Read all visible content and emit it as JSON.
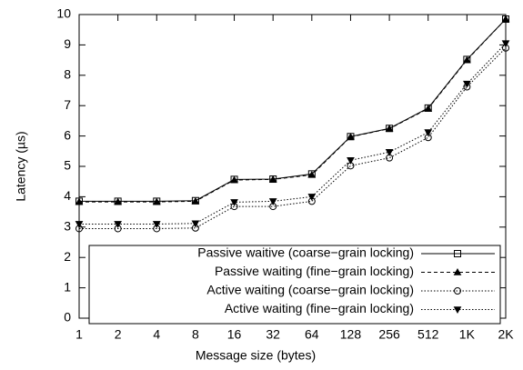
{
  "chart_data": {
    "type": "line",
    "xlabel": "Message size (bytes)",
    "ylabel": "Latency (µs)",
    "categories": [
      "1",
      "2",
      "4",
      "8",
      "16",
      "32",
      "64",
      "128",
      "256",
      "512",
      "1K",
      "2K"
    ],
    "series": [
      {
        "name": "Passive waitive (coarse−grain locking)",
        "color": "#000000",
        "marker": "square",
        "line_style": "solid",
        "values": [
          3.85,
          3.85,
          3.85,
          3.87,
          4.57,
          4.58,
          4.75,
          5.98,
          6.25,
          6.92,
          8.52,
          9.85
        ]
      },
      {
        "name": "Passive waiting (fine−grain locking)",
        "color": "#000000",
        "marker": "triangle-up",
        "line_style": "dashed",
        "values": [
          3.83,
          3.83,
          3.83,
          3.85,
          4.55,
          4.57,
          4.72,
          5.97,
          6.24,
          6.9,
          8.5,
          9.85
        ]
      },
      {
        "name": "Active waiting (coarse−grain locking)",
        "color": "#000000",
        "marker": "circle",
        "line_style": "dotted",
        "values": [
          2.95,
          2.95,
          2.95,
          2.97,
          3.68,
          3.68,
          3.85,
          5.02,
          5.28,
          5.95,
          7.62,
          8.9
        ]
      },
      {
        "name": "Active waiting (fine−grain locking)",
        "color": "#000000",
        "marker": "triangle-down",
        "line_style": "dotted",
        "values": [
          3.1,
          3.1,
          3.1,
          3.12,
          3.82,
          3.85,
          4.0,
          5.2,
          5.47,
          6.12,
          7.72,
          9.05
        ]
      }
    ],
    "ylim": [
      0,
      10
    ],
    "yticks": [
      0,
      1,
      2,
      3,
      4,
      5,
      6,
      7,
      8,
      9,
      10
    ],
    "legend": "lower right",
    "grid": false
  }
}
